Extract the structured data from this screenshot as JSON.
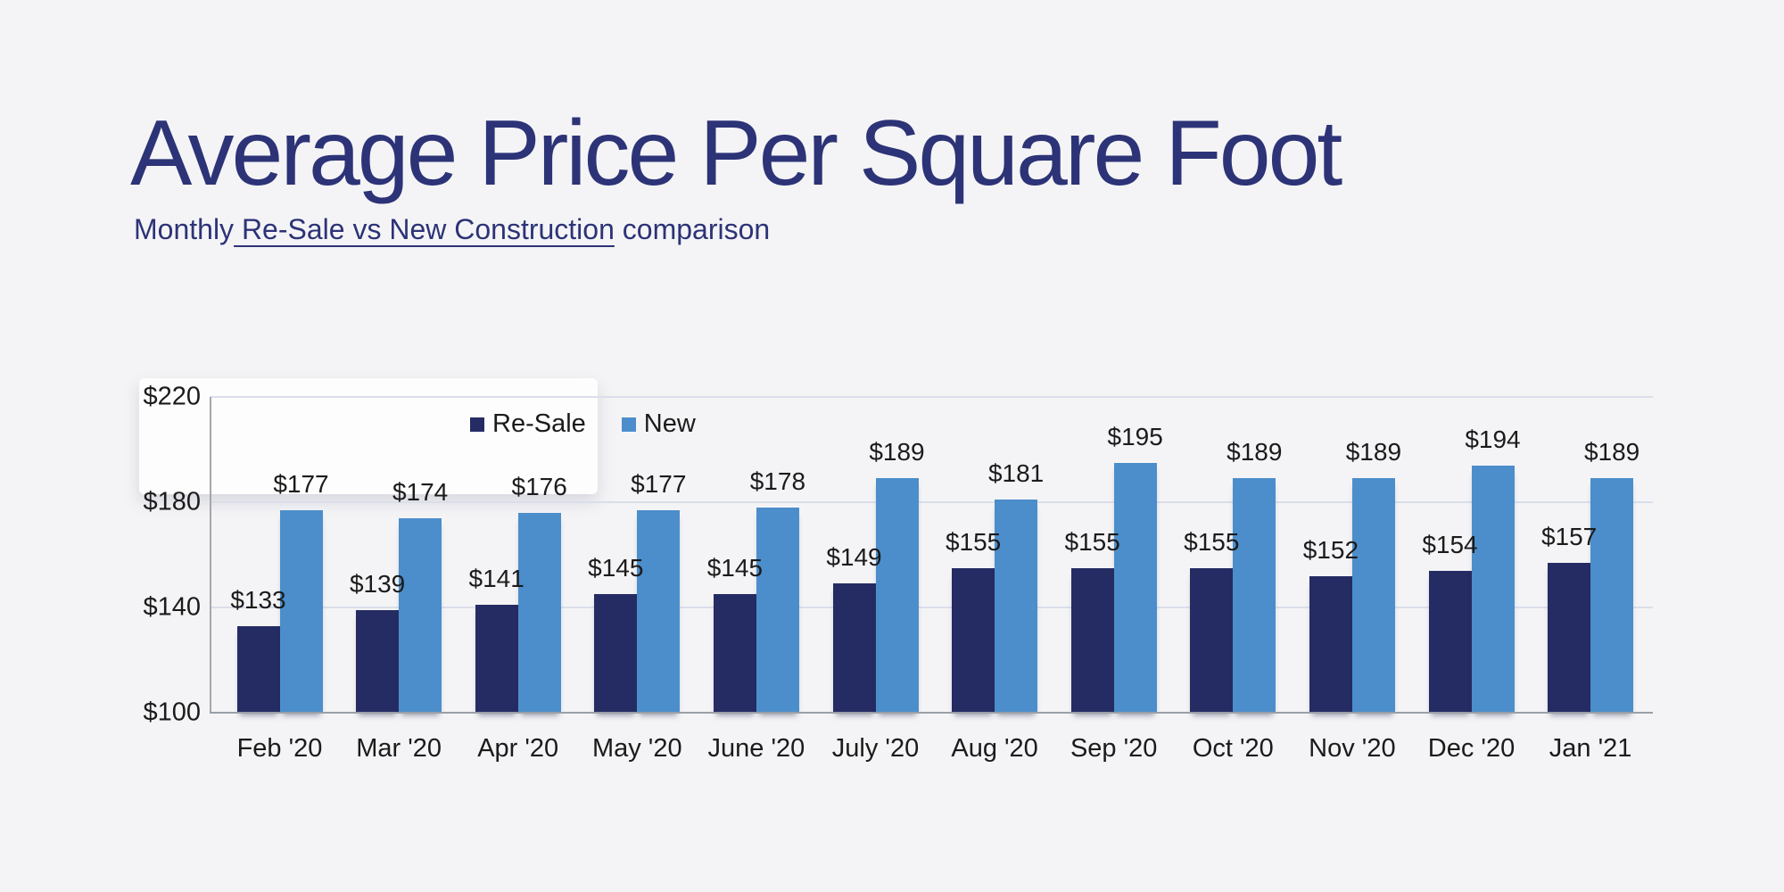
{
  "header": {
    "title": "Average Price Per Square Foot",
    "subtitle": {
      "prefix": "Monthly",
      "underlined": " Re-Sale vs New Construction",
      "suffix": " comparison"
    }
  },
  "colors": {
    "background": "#f4f4f6",
    "title_text": "#2d3377",
    "resale_bar": "#252c64",
    "new_bar": "#4c8ecb",
    "gridline": "#dadeeb",
    "y_axis_line": "#a6a6ab",
    "x_axis_line": "#9aa0a8",
    "label_text": "#1b1b1b"
  },
  "legend": {
    "items": [
      {
        "label": "Re-Sale",
        "color": "#252c64"
      },
      {
        "label": "New",
        "color": "#4c8ecb"
      }
    ]
  },
  "chart_data": {
    "type": "bar",
    "title": "Average Price Per Square Foot",
    "subtitle": "Monthly Re-Sale vs New Construction comparison",
    "categories": [
      "Feb '20",
      "Mar '20",
      "Apr '20",
      "May '20",
      "June '20",
      "July '20",
      "Aug '20",
      "Sep '20",
      "Oct '20",
      "Nov '20",
      "Dec '20",
      "Jan '21"
    ],
    "series": [
      {
        "name": "Re-Sale",
        "color": "#252c64",
        "values": [
          133,
          139,
          141,
          145,
          145,
          149,
          155,
          155,
          155,
          152,
          154,
          157
        ]
      },
      {
        "name": "New",
        "color": "#4c8ecb",
        "values": [
          177,
          174,
          176,
          177,
          178,
          189,
          181,
          195,
          189,
          189,
          194,
          189
        ]
      }
    ],
    "ylim": [
      100,
      220
    ],
    "ytick_values": [
      220,
      180,
      140,
      100
    ],
    "ytick_labels": [
      "$220",
      "$180",
      "$140",
      "$100"
    ],
    "grid": true,
    "legend_position": "top-left-inside",
    "data_label_prefix": "$",
    "xlabel": "",
    "ylabel": ""
  }
}
